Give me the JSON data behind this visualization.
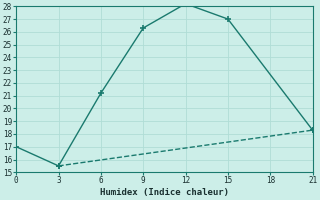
{
  "line1_x": [
    0,
    3,
    6,
    9,
    12,
    15,
    21
  ],
  "line1_y": [
    17,
    15.5,
    21.2,
    26.3,
    28.2,
    27.0,
    18.3
  ],
  "line2_x": [
    3,
    21
  ],
  "line2_y": [
    15.5,
    18.3
  ],
  "line_color": "#1a7a6e",
  "bg_color": "#cceee8",
  "grid_color": "#b0ddd6",
  "xlabel": "Humidex (Indice chaleur)",
  "xlim": [
    0,
    21
  ],
  "ylim": [
    15,
    28
  ],
  "xticks": [
    0,
    3,
    6,
    9,
    12,
    15,
    18,
    21
  ],
  "yticks": [
    15,
    16,
    17,
    18,
    19,
    20,
    21,
    22,
    23,
    24,
    25,
    26,
    27,
    28
  ],
  "marker": "+",
  "markersize": 4,
  "linewidth": 1.0
}
